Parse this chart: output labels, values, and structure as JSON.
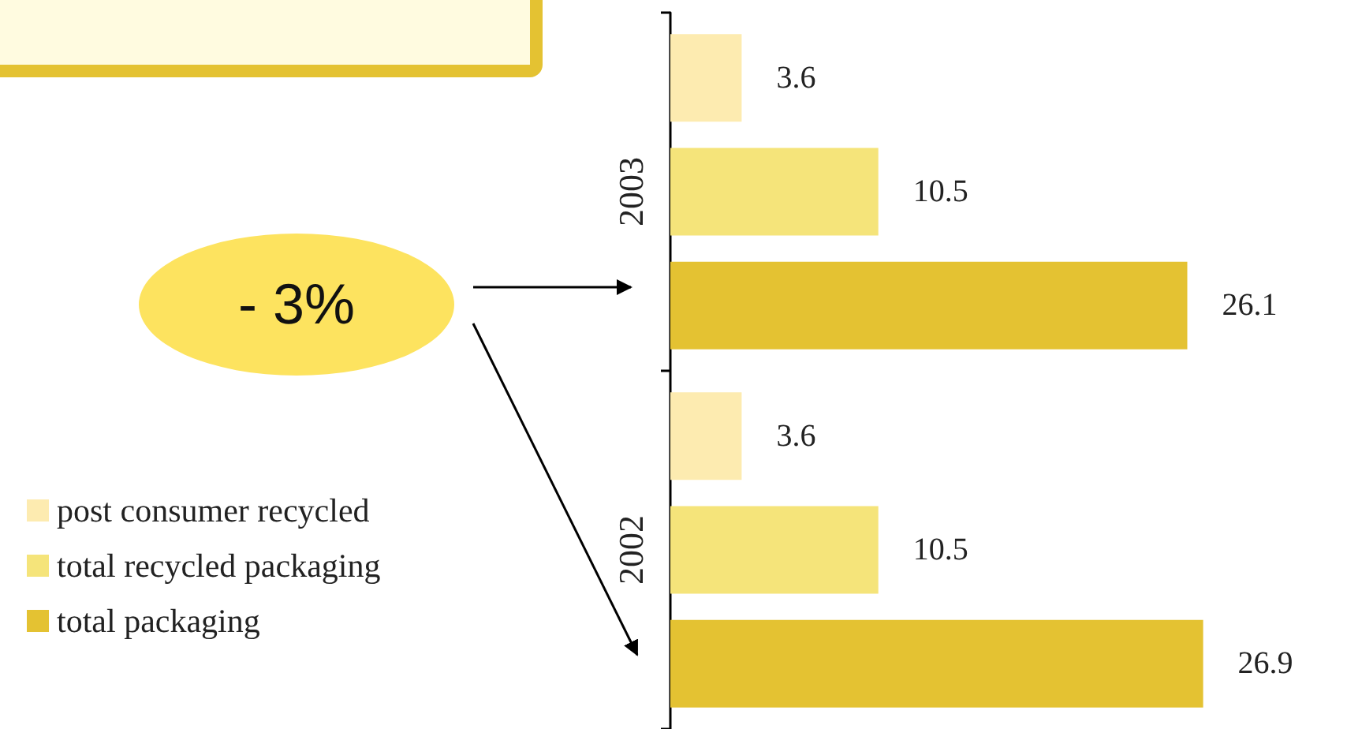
{
  "chart_data": {
    "type": "bar",
    "orientation": "horizontal",
    "categories": [
      "2003",
      "2002"
    ],
    "series": [
      {
        "name": "post consumer recycled",
        "color": "#fdebb0",
        "values": [
          3.6,
          3.6
        ]
      },
      {
        "name": "total recycled packaging",
        "color": "#f5e47a",
        "values": [
          10.5,
          10.5
        ]
      },
      {
        "name": "total packaging",
        "color": "#e4c232",
        "values": [
          26.1,
          26.9
        ]
      }
    ],
    "data_labels": true,
    "legend": "left",
    "tick_labels": "y",
    "annotations": [
      "- 3%"
    ]
  }
}
